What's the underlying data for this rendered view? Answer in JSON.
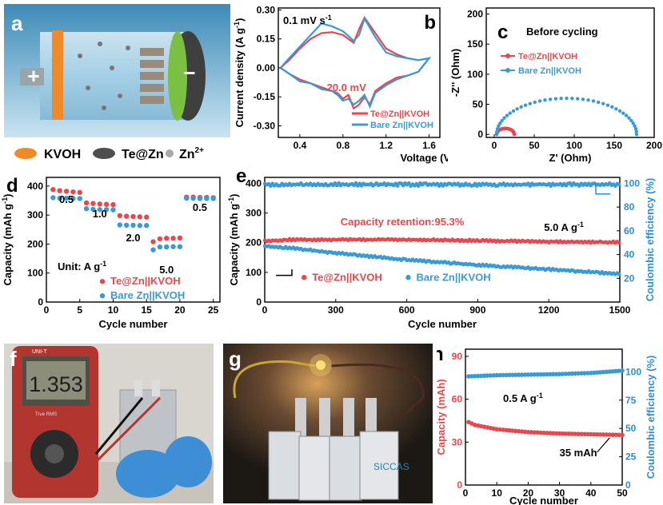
{
  "panel_labels": {
    "a": "a",
    "b": "b",
    "c": "c",
    "d": "d",
    "e": "e",
    "f": "f",
    "g": "g",
    "h": "h"
  },
  "schematic": {
    "plus": "+",
    "minus": "−",
    "legend": [
      {
        "label": "KVOH",
        "color": "#f08a28"
      },
      {
        "label": "Te@Zn",
        "color": "#4f4f4f"
      },
      {
        "label": "Zn",
        "sup": "2+",
        "color": "#a8a8a8"
      }
    ]
  },
  "photos": {
    "meter_reading": "1.353",
    "meter_brand": "UNI-T",
    "meter_true_rms": "True RMS",
    "pouch_label": "SICCAS"
  },
  "colors": {
    "red": "#e8474e",
    "blue": "#3a9ad6",
    "blue_axis": "#2c8fcf",
    "red_axis": "#e8474e"
  },
  "chart_data": [
    {
      "panel": "b",
      "type": "line",
      "xlabel": "Voltage (V)",
      "ylabel": "Current density (A g",
      "ylabel_sup": "-1",
      "ylabel_end": ")",
      "xlim": [
        0.2,
        1.7
      ],
      "ylim": [
        -0.36,
        0.31
      ],
      "xticks": [
        0.4,
        0.8,
        1.2,
        1.6
      ],
      "yticks": [
        -0.3,
        -0.15,
        0.0,
        0.15,
        0.3
      ],
      "ytick_labels": [
        "-0.30",
        "-0.15",
        "0.00",
        "0.15",
        "0.30"
      ],
      "xtick_labels": [
        "0.4",
        "0.8",
        "1.2",
        "1.6"
      ],
      "annotations": [
        {
          "text": "0.1 mV s",
          "sup": "-1"
        },
        {
          "text": "20.0 mV"
        }
      ],
      "legend_position": "bottom-right",
      "series": [
        {
          "name": "Te@Zn||KVOH",
          "color": "#e8474e",
          "x": [
            0.22,
            0.3,
            0.4,
            0.5,
            0.6,
            0.7,
            0.8,
            0.9,
            0.95,
            1.0,
            1.1,
            1.2,
            1.3,
            1.4,
            1.5,
            1.6,
            1.5,
            1.4,
            1.3,
            1.2,
            1.1,
            1.05,
            1.0,
            0.95,
            0.9,
            0.85,
            0.8,
            0.75,
            0.7,
            0.6,
            0.5,
            0.4,
            0.3,
            0.22
          ],
          "y": [
            0.0,
            0.04,
            0.1,
            0.15,
            0.18,
            0.185,
            0.17,
            0.13,
            0.2,
            0.26,
            0.18,
            0.1,
            0.07,
            0.05,
            0.04,
            0.05,
            -0.02,
            -0.04,
            -0.05,
            -0.08,
            -0.12,
            -0.19,
            -0.15,
            -0.19,
            -0.21,
            -0.14,
            -0.16,
            -0.13,
            -0.12,
            -0.1,
            -0.08,
            -0.06,
            -0.03,
            0.0
          ]
        },
        {
          "name": "Bare Zn||KVOH",
          "color": "#3a9ad6",
          "x": [
            0.22,
            0.3,
            0.4,
            0.5,
            0.6,
            0.7,
            0.8,
            0.9,
            0.95,
            1.0,
            1.1,
            1.2,
            1.3,
            1.4,
            1.5,
            1.6,
            1.5,
            1.4,
            1.3,
            1.2,
            1.1,
            1.05,
            1.0,
            0.95,
            0.9,
            0.85,
            0.8,
            0.75,
            0.7,
            0.6,
            0.5,
            0.4,
            0.3,
            0.22
          ],
          "y": [
            0.0,
            0.05,
            0.11,
            0.17,
            0.23,
            0.215,
            0.19,
            0.14,
            0.17,
            0.255,
            0.16,
            0.08,
            0.06,
            0.05,
            0.04,
            0.05,
            -0.02,
            -0.04,
            -0.06,
            -0.09,
            -0.13,
            -0.2,
            -0.14,
            -0.17,
            -0.19,
            -0.16,
            -0.17,
            -0.14,
            -0.12,
            -0.11,
            -0.08,
            -0.07,
            -0.03,
            0.0
          ]
        }
      ]
    },
    {
      "panel": "c",
      "type": "scatter",
      "xlabel": "Z' (Ohm)",
      "ylabel": "-Z'' (Ohm)",
      "xlim": [
        -10,
        200
      ],
      "ylim": [
        -5,
        210
      ],
      "xticks": [
        0,
        50,
        100,
        150,
        200
      ],
      "yticks": [
        0,
        50,
        100,
        150,
        200
      ],
      "title": "Before cycling",
      "legend_position": "top-left",
      "series": [
        {
          "name": "Te@Zn||KVOH",
          "color": "#e8474e",
          "kind": "semicircle",
          "start": 3,
          "end": 25,
          "height": 10
        },
        {
          "name": "Bare Zn||KVOH",
          "color": "#3a9ad6",
          "kind": "semicircle",
          "start": 3,
          "end": 178,
          "height": 60
        }
      ]
    },
    {
      "panel": "d",
      "type": "scatter",
      "xlabel": "Cycle number",
      "ylabel": "Capacity (mAh g",
      "ylabel_sup": "-1",
      "ylabel_end": ")",
      "xlim": [
        0,
        26
      ],
      "ylim": [
        0,
        430
      ],
      "xticks": [
        0,
        5,
        10,
        15,
        20,
        25
      ],
      "yticks": [
        0,
        100,
        200,
        300,
        400
      ],
      "rate_labels": [
        "0.5",
        "1.0",
        "2.0",
        "5.0",
        "0.5"
      ],
      "unit_text": "Unit: A g",
      "unit_sup": "-1",
      "legend_position": "bottom-center",
      "series": [
        {
          "name": "Te@Zn||KVOH",
          "color": "#e8474e",
          "x": [
            1,
            2,
            3,
            4,
            5,
            6,
            7,
            8,
            9,
            10,
            11,
            12,
            13,
            14,
            15,
            16,
            17,
            18,
            19,
            20,
            21,
            22,
            23,
            24,
            25
          ],
          "y": [
            388,
            384,
            382,
            380,
            378,
            342,
            340,
            338,
            337,
            336,
            298,
            296,
            295,
            294,
            293,
            208,
            218,
            220,
            220,
            221,
            362,
            362,
            361,
            361,
            360
          ]
        },
        {
          "name": "Bare Zn||KVOH",
          "color": "#3a9ad6",
          "x": [
            1,
            2,
            3,
            4,
            5,
            6,
            7,
            8,
            9,
            10,
            11,
            12,
            13,
            14,
            15,
            16,
            17,
            18,
            19,
            20,
            21,
            22,
            23,
            24,
            25
          ],
          "y": [
            360,
            358,
            358,
            357,
            357,
            322,
            320,
            319,
            319,
            318,
            266,
            265,
            265,
            264,
            264,
            180,
            190,
            190,
            191,
            191,
            358,
            358,
            357,
            357,
            357
          ]
        }
      ]
    },
    {
      "panel": "e",
      "type": "scatter",
      "xlabel": "Cycle number",
      "ylabel": "Capacity (mAh g",
      "ylabel_sup": "-1",
      "ylabel_end": ")",
      "y2label": "Coulombic efficiency (%)",
      "xlim": [
        0,
        1500
      ],
      "ylim": [
        0,
        420
      ],
      "y2lim": [
        0,
        105
      ],
      "xticks": [
        0,
        300,
        600,
        900,
        1200,
        1500
      ],
      "yticks": [
        0,
        100,
        200,
        300,
        400
      ],
      "y2ticks": [
        20,
        40,
        60,
        80,
        100
      ],
      "annotations": [
        {
          "text": "Capacity retention:95.3%"
        },
        {
          "text": "5.0 A g",
          "sup": "-1"
        }
      ],
      "legend_position": "bottom",
      "series": [
        {
          "name": "Te@Zn||KVOH",
          "color": "#e8474e",
          "x": [
            0,
            100,
            300,
            600,
            900,
            1200,
            1500
          ],
          "y": [
            205,
            210,
            210,
            210,
            207,
            203,
            201
          ]
        },
        {
          "name": "Bare Zn||KVOH",
          "color": "#3a9ad6",
          "x": [
            0,
            100,
            300,
            600,
            900,
            1200,
            1500
          ],
          "y": [
            188,
            183,
            165,
            142,
            125,
            110,
            95
          ]
        },
        {
          "name": "CE",
          "color": "#3a9ad6",
          "axis": "right",
          "x": [
            0,
            1500
          ],
          "y": [
            99,
            99
          ]
        }
      ]
    },
    {
      "panel": "h",
      "type": "scatter",
      "xlabel": "Cycle number",
      "ylabel": "Capacity (mAh)",
      "y2label": "Coulombic efficiency (%)",
      "xlim": [
        0,
        50
      ],
      "ylim": [
        0,
        95
      ],
      "y2lim": [
        0,
        120
      ],
      "xticks": [
        0,
        10,
        20,
        30,
        40,
        50
      ],
      "yticks": [
        0,
        30,
        60,
        90
      ],
      "y2ticks": [
        0,
        25,
        50,
        75,
        100
      ],
      "annotations": [
        {
          "text": "0.5 A g",
          "sup": "-1"
        },
        {
          "text": "35 mAh"
        }
      ],
      "series": [
        {
          "name": "Capacity",
          "color": "#e8474e",
          "x": [
            1,
            3,
            10,
            20,
            30,
            40,
            50
          ],
          "y": [
            44,
            42,
            39,
            37,
            36,
            35.5,
            35
          ]
        },
        {
          "name": "CE",
          "color": "#3a9ad6",
          "axis": "right",
          "x": [
            1,
            10,
            20,
            30,
            40,
            50
          ],
          "y": [
            96,
            97,
            97.5,
            98,
            99,
            101
          ]
        }
      ]
    }
  ]
}
